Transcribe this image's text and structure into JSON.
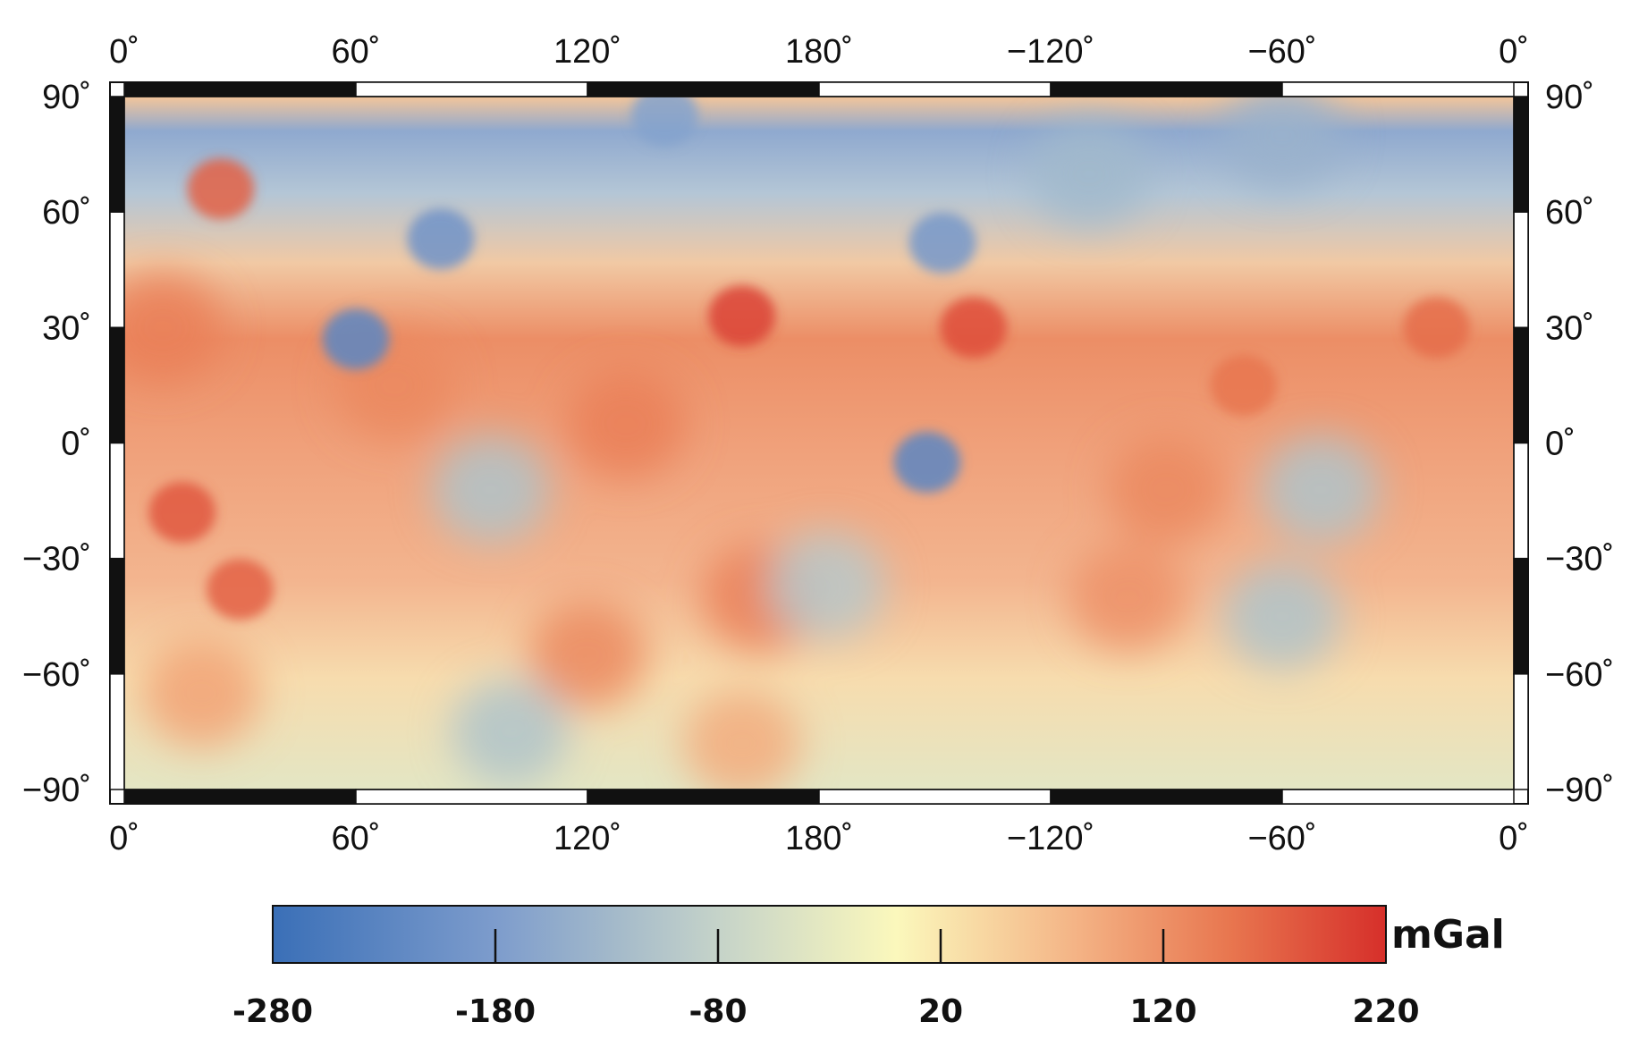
{
  "map": {
    "lon_labels": [
      "0˚",
      "60˚",
      "120˚",
      "180˚",
      "−120˚",
      "−60˚",
      "0˚"
    ],
    "lat_labels": [
      "90˚",
      "60˚",
      "30˚",
      "0˚",
      "−30˚",
      "−60˚",
      "−90˚"
    ],
    "lon_range": [
      0,
      360
    ],
    "lat_range": [
      -90,
      90
    ],
    "lon_frame_interval": 60,
    "lat_frame_interval": 30
  },
  "colorbar": {
    "unit": "mGal",
    "tick_labels": [
      "-280",
      "-180",
      "-80",
      "20",
      "120",
      "220"
    ],
    "range": [
      -280,
      220
    ],
    "colors": [
      "#3a6fb7",
      "#7d9ccc",
      "#c5d3c9",
      "#fbf8bc",
      "#f4b486",
      "#e8764f",
      "#d62f2a"
    ]
  },
  "anomalies": [
    {
      "lon": 25,
      "lat": 66,
      "value": 170
    },
    {
      "lon": 60,
      "lat": 27,
      "value": -230
    },
    {
      "lon": 82,
      "lat": 53,
      "value": -200
    },
    {
      "lon": 160,
      "lat": 33,
      "value": 200
    },
    {
      "lon": 220,
      "lat": 30,
      "value": 190
    },
    {
      "lon": 208,
      "lat": -5,
      "value": -230
    },
    {
      "lon": 212,
      "lat": 52,
      "value": -190
    },
    {
      "lon": 15,
      "lat": -18,
      "value": 180
    },
    {
      "lon": 30,
      "lat": -38,
      "value": 170
    },
    {
      "lon": 95,
      "lat": -12,
      "value": -110
    },
    {
      "lon": 130,
      "lat": 5,
      "value": 140
    },
    {
      "lon": 165,
      "lat": -40,
      "value": 140
    },
    {
      "lon": 182,
      "lat": -37,
      "value": -100
    },
    {
      "lon": 120,
      "lat": -55,
      "value": 130
    },
    {
      "lon": 100,
      "lat": -75,
      "value": -110
    },
    {
      "lon": 160,
      "lat": -78,
      "value": 90
    },
    {
      "lon": 300,
      "lat": -45,
      "value": -110
    },
    {
      "lon": 310,
      "lat": -12,
      "value": -110
    },
    {
      "lon": 340,
      "lat": 30,
      "value": 160
    },
    {
      "lon": 290,
      "lat": 15,
      "value": 150
    },
    {
      "lon": 140,
      "lat": 85,
      "value": -170
    },
    {
      "lon": 300,
      "lat": 80,
      "value": -140
    },
    {
      "lon": 250,
      "lat": 70,
      "value": -130
    },
    {
      "lon": 20,
      "lat": -65,
      "value": 100
    },
    {
      "lon": 260,
      "lat": -40,
      "value": 120
    },
    {
      "lon": 270,
      "lat": -12,
      "value": 130
    },
    {
      "lon": 70,
      "lat": 15,
      "value": 130
    },
    {
      "lon": 10,
      "lat": 30,
      "value": 140
    }
  ]
}
